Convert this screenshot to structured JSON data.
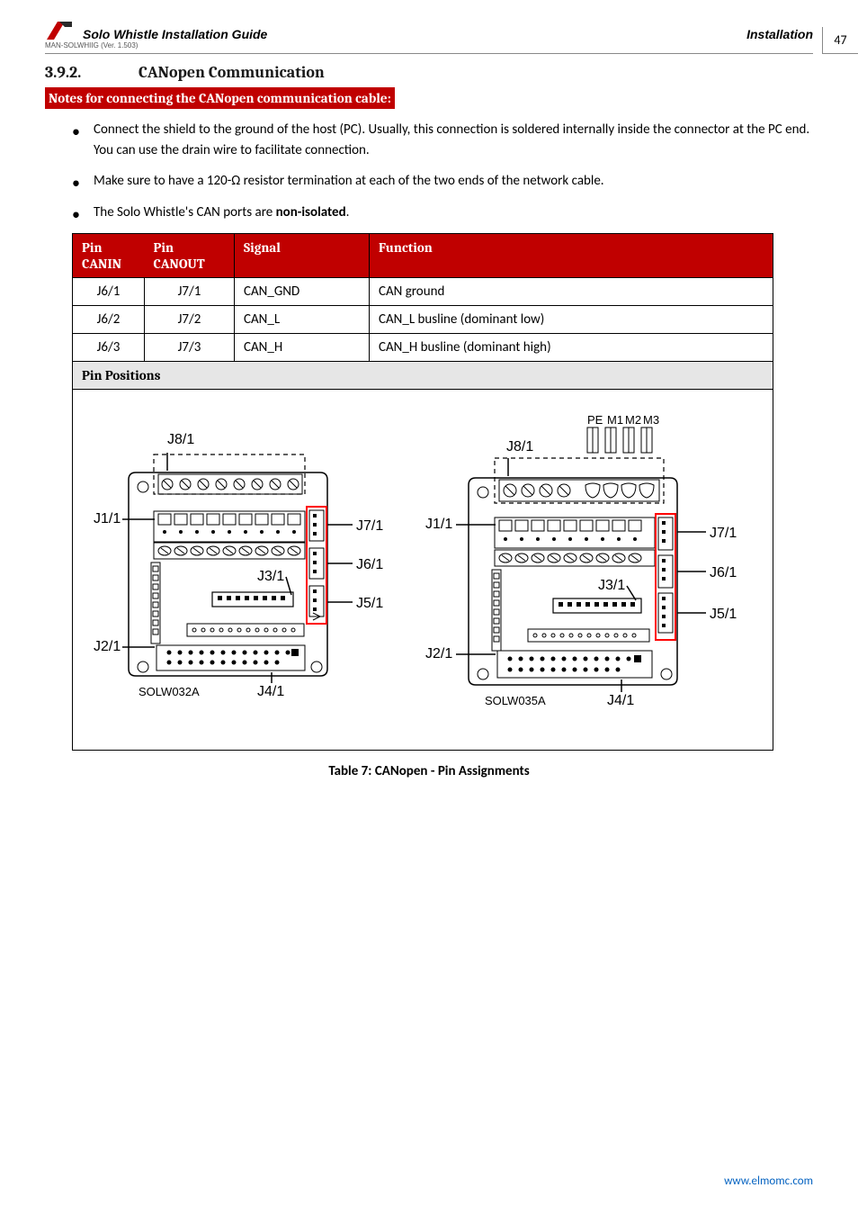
{
  "header": {
    "title": "Solo Whistle Installation Guide",
    "section": "Installation",
    "pageNum": "47",
    "manVer": "MAN-SOLWHIIG (Ver. 1.503)"
  },
  "section": {
    "number": "3.9.2.",
    "title": "CANopen Communication"
  },
  "notesBar": "Notes for connecting the CANopen communication cable:",
  "bullets": [
    "Connect the shield to the ground of the host (PC). Usually, this connection is soldered internally inside the connector at the PC end. You can use the drain wire to facilitate connection.",
    "Make sure to have a 120-Ω resistor termination at each of the two ends of the network cable.",
    "The Solo Whistle's CAN ports are <b>non-isolated</b>."
  ],
  "table": {
    "headers": {
      "pinCanin": "Pin",
      "canin": "CANIN",
      "pinCanout": "Pin",
      "canout": "CANOUT",
      "signal": "Signal",
      "function": "Function"
    },
    "rows": [
      {
        "canin": "J6/1",
        "canout": "J7/1",
        "signal": "CAN_GND",
        "function": "CAN ground"
      },
      {
        "canin": "J6/2",
        "canout": "J7/2",
        "signal": "CAN_L",
        "function": "CAN_L busline (dominant low)"
      },
      {
        "canin": "J6/3",
        "canout": "J7/3",
        "signal": "CAN_H",
        "function": "CAN_H busline (dominant high)"
      }
    ],
    "pinPositions": "Pin Positions"
  },
  "diagram": {
    "left": {
      "id": "SOLW032A",
      "labels": {
        "j8": "J8/1",
        "j1": "J1/1",
        "j2": "J2/1",
        "j3": "J3/1",
        "j4": "J4/1",
        "j5": "J5/1",
        "j6": "J6/1",
        "j7": "J7/1"
      },
      "colors": {
        "board": "#e0e0e0",
        "outline": "#000000",
        "highlight": "#ff0000",
        "dashed": "#000000",
        "text": "#000000"
      }
    },
    "right": {
      "id": "SOLW035A",
      "labels": {
        "j8": "J8/1",
        "j1": "J1/1",
        "j2": "J2/1",
        "j3": "J3/1",
        "j4": "J4/1",
        "j5": "J5/1",
        "j6": "J6/1",
        "j7": "J7/1",
        "pe": "PE",
        "m1": "M1",
        "m2": "M2",
        "m3": "M3"
      }
    }
  },
  "caption": "Table 7: CANopen - Pin Assignments",
  "footer": {
    "url": "www.elmomc.com"
  }
}
